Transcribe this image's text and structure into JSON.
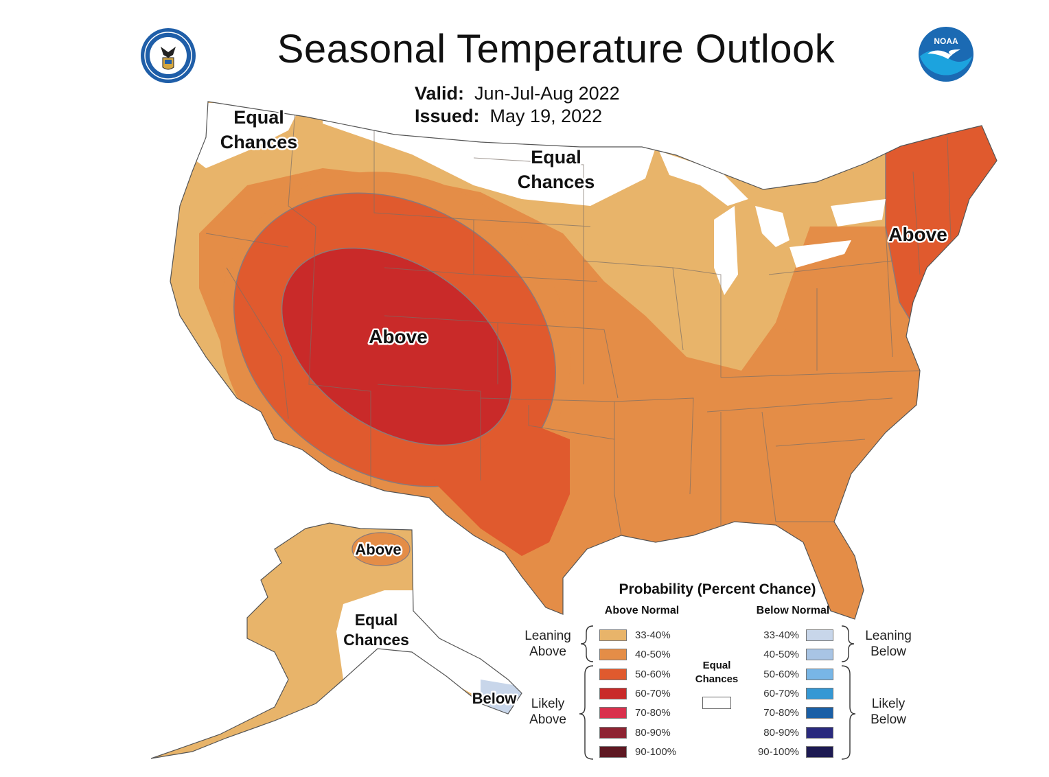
{
  "title": "Seasonal Temperature Outlook",
  "valid_label": "Valid:",
  "valid_value": "Jun-Jul-Aug 2022",
  "issued_label": "Issued:",
  "issued_value": "May 19, 2022",
  "logos": {
    "left": "doc-seal-icon",
    "right": "noaa-logo-icon",
    "noaa_text": "NOAA"
  },
  "map": {
    "labels": {
      "nw_equal_1": "Equal",
      "nw_equal_2": "Chances",
      "north_equal_1": "Equal",
      "north_equal_2": "Chances",
      "west_above": "Above",
      "ne_above": "Above",
      "ak_above": "Above",
      "ak_equal_1": "Equal",
      "ak_equal_2": "Chances",
      "ak_below": "Below"
    },
    "colors": {
      "equal_chances": "#ffffff",
      "above_33_40": "#e8b46a",
      "above_40_50": "#e48d47",
      "above_50_60": "#e05a2e",
      "above_60_70": "#c92a29",
      "below_33_40": "#c8d6ea"
    }
  },
  "legend": {
    "title": "Probability (Percent Chance)",
    "above_header": "Above Normal",
    "below_header": "Below Normal",
    "leaning_above_1": "Leaning",
    "leaning_above_2": "Above",
    "likely_above_1": "Likely",
    "likely_above_2": "Above",
    "leaning_below_1": "Leaning",
    "leaning_below_2": "Below",
    "likely_below_1": "Likely",
    "likely_below_2": "Below",
    "equal_1": "Equal",
    "equal_2": "Chances",
    "equal_color": "#ffffff",
    "above": [
      {
        "range": "33-40%",
        "color": "#e8b46a"
      },
      {
        "range": "40-50%",
        "color": "#e48d47"
      },
      {
        "range": "50-60%",
        "color": "#e05a2e"
      },
      {
        "range": "60-70%",
        "color": "#c92a29"
      },
      {
        "range": "70-80%",
        "color": "#d9304c"
      },
      {
        "range": "80-90%",
        "color": "#8e2332"
      },
      {
        "range": "90-100%",
        "color": "#5e1822"
      }
    ],
    "below": [
      {
        "range": "33-40%",
        "color": "#c8d6ea"
      },
      {
        "range": "40-50%",
        "color": "#a8c4e4"
      },
      {
        "range": "50-60%",
        "color": "#78b6e6"
      },
      {
        "range": "60-70%",
        "color": "#3598d4"
      },
      {
        "range": "70-80%",
        "color": "#1a5fa6"
      },
      {
        "range": "80-90%",
        "color": "#2a2a7e"
      },
      {
        "range": "90-100%",
        "color": "#1d1a52"
      }
    ]
  }
}
